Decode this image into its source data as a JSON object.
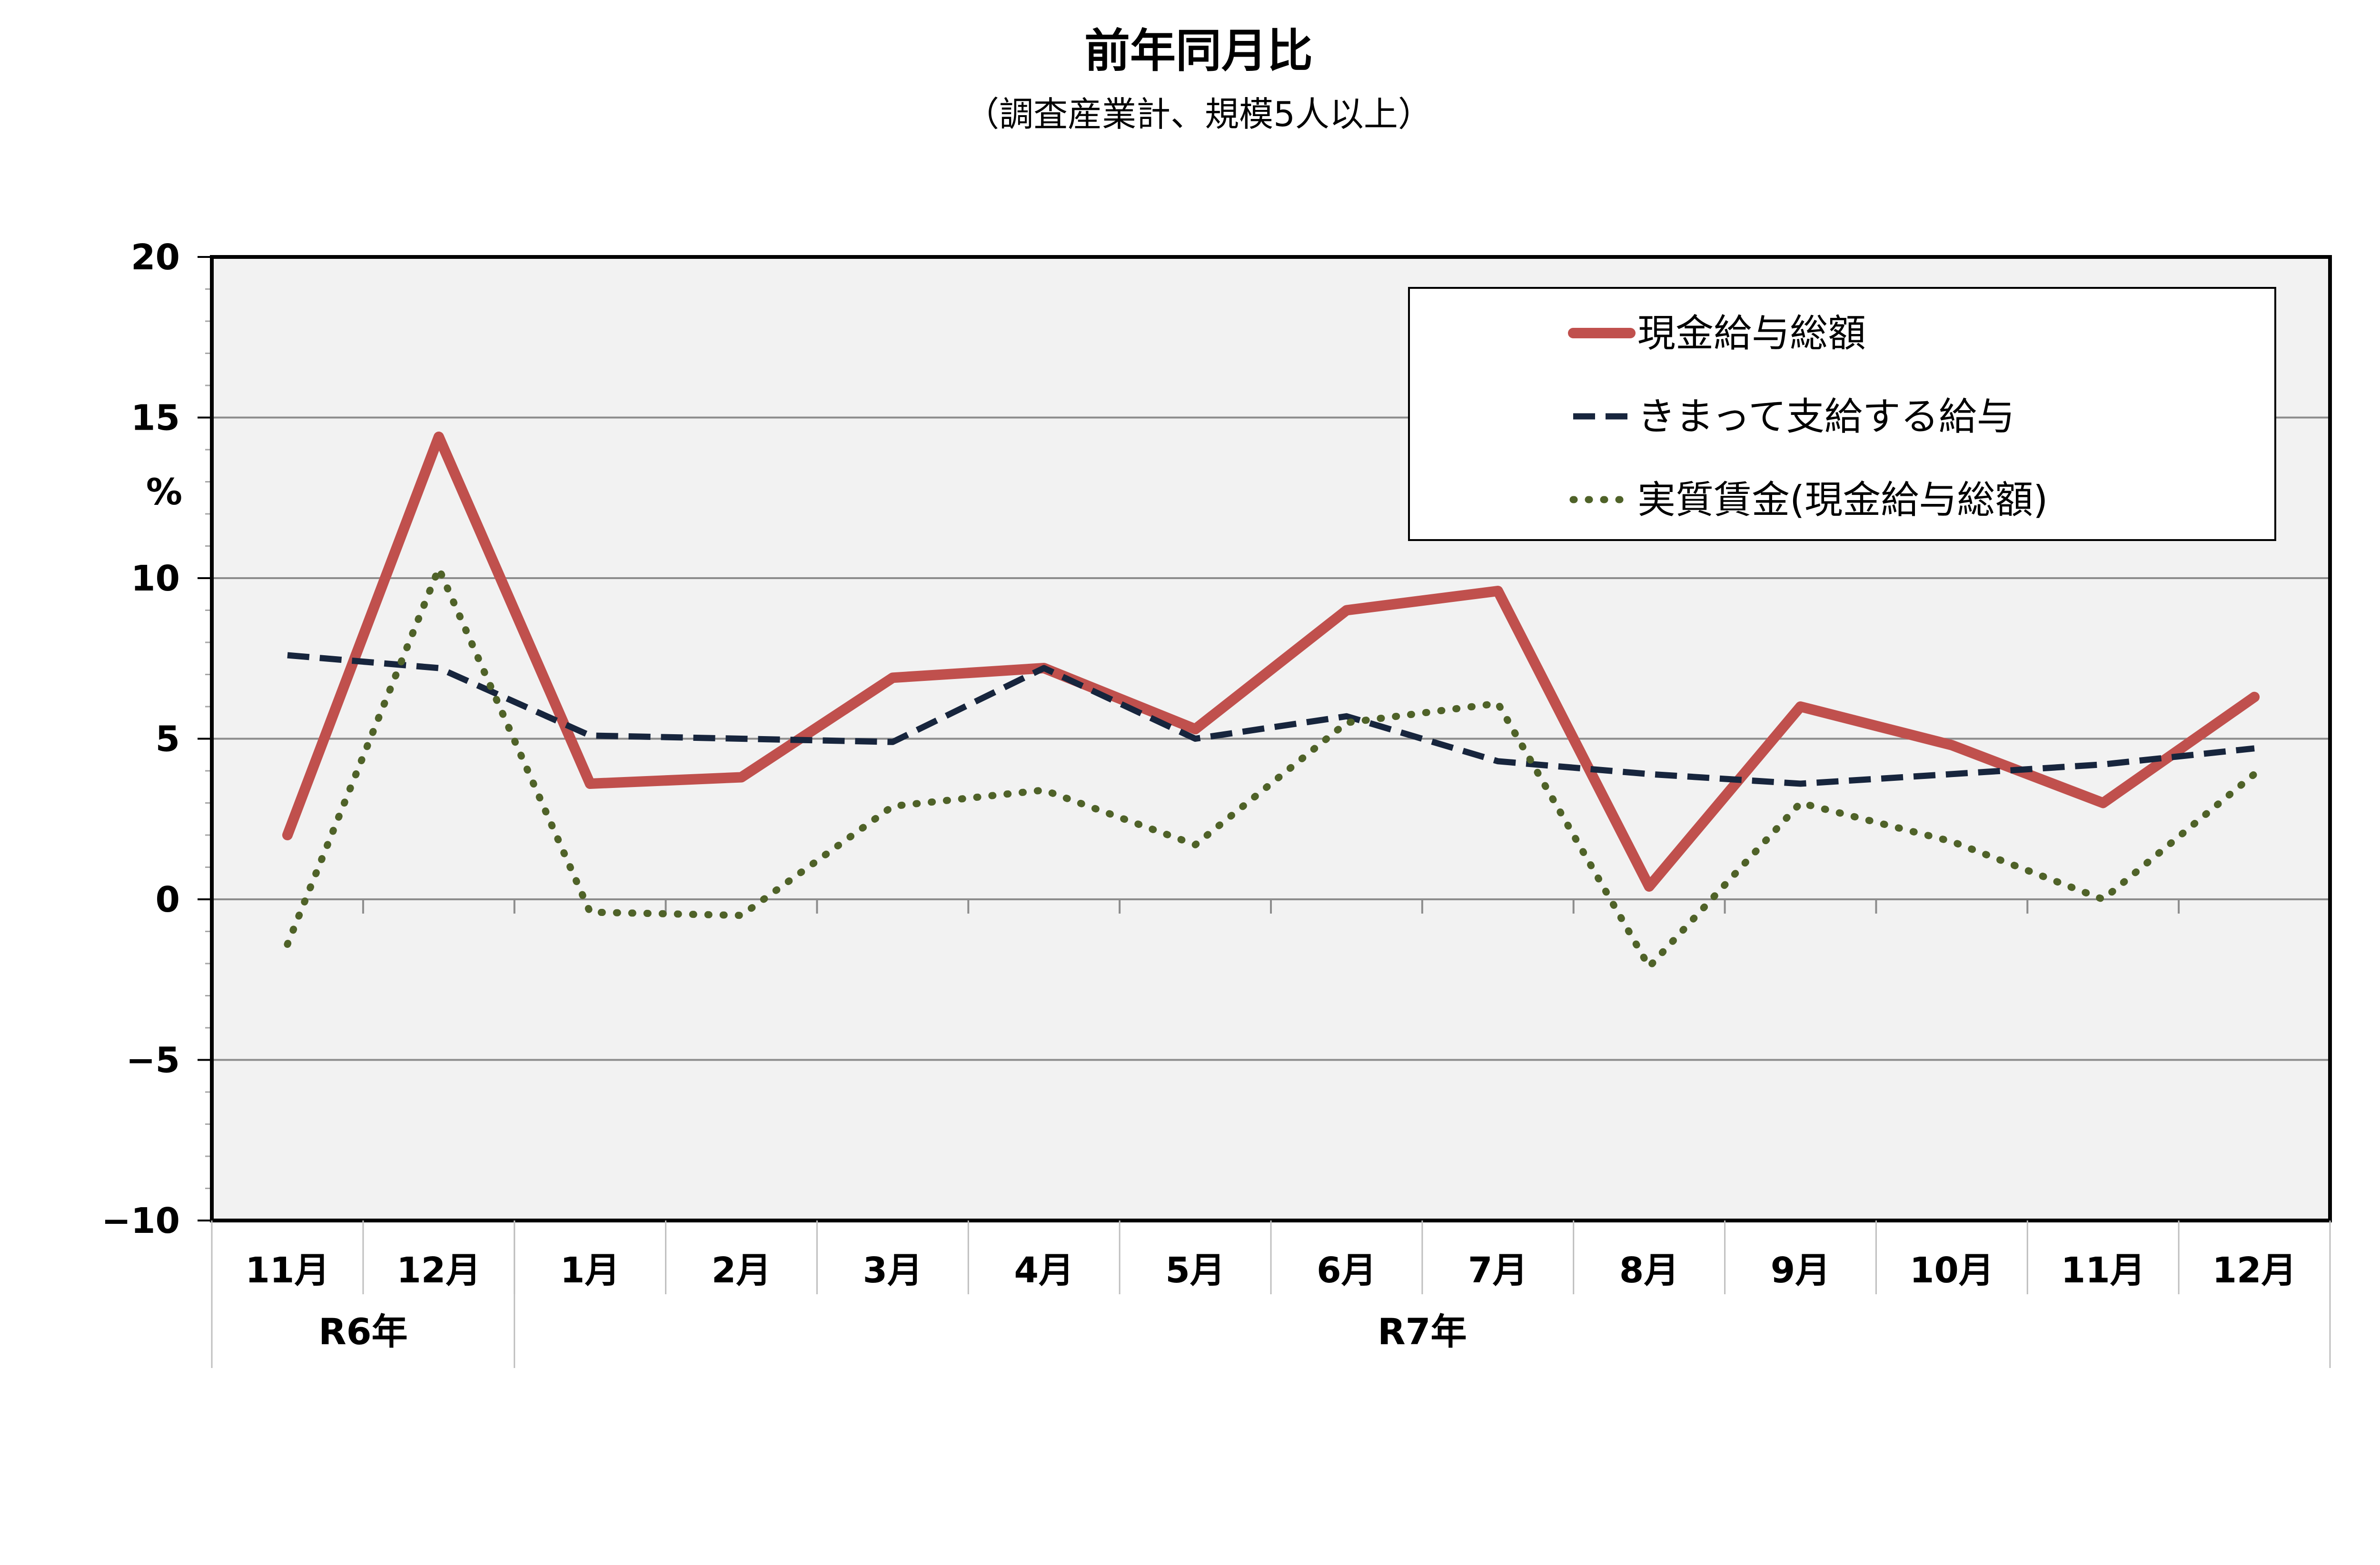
{
  "chart_data": {
    "type": "line",
    "title": "前年同月比",
    "subtitle": "（調査産業計、規模5人以上）",
    "ylabel": "%",
    "ylim": [
      -10,
      20
    ],
    "yticks": [
      {
        "value": 20,
        "label": "20"
      },
      {
        "value": 15,
        "label": "15"
      },
      {
        "value": 10,
        "label": "10"
      },
      {
        "value": 5,
        "label": "5"
      },
      {
        "value": 0,
        "label": "0"
      },
      {
        "value": -5,
        "label": "−5"
      },
      {
        "value": -10,
        "label": "−10"
      }
    ],
    "grid": true,
    "legend_position": "top-right",
    "categories": [
      "11月",
      "12月",
      "1月",
      "2月",
      "3月",
      "4月",
      "5月",
      "6月",
      "7月",
      "8月",
      "9月",
      "10月",
      "11月",
      "12月"
    ],
    "groups": [
      {
        "label": "R6年",
        "count": 2
      },
      {
        "label": "R7年",
        "count": 12
      }
    ],
    "series": [
      {
        "name": "現金給与総額",
        "style": "solid",
        "color": "#c0504d",
        "values": [
          2.0,
          14.4,
          3.6,
          3.8,
          6.9,
          7.2,
          5.3,
          9.0,
          9.6,
          0.4,
          6.0,
          4.8,
          3.0,
          6.3
        ]
      },
      {
        "name": "きまって支給する給与",
        "style": "dashed",
        "color": "#17253d",
        "values": [
          7.6,
          7.2,
          5.1,
          5.0,
          4.9,
          7.2,
          5.0,
          5.7,
          4.3,
          3.9,
          3.6,
          3.9,
          4.2,
          4.7
        ]
      },
      {
        "name": "実質賃金(現金給与総額)",
        "style": "dotted",
        "color": "#4f6228",
        "values": [
          -1.4,
          10.3,
          -0.4,
          -0.5,
          2.9,
          3.4,
          1.7,
          5.5,
          6.1,
          -2.1,
          3.0,
          1.8,
          0.0,
          3.9
        ]
      }
    ]
  }
}
